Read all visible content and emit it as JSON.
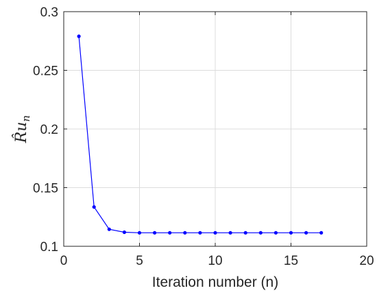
{
  "chart_data": {
    "type": "line",
    "title": "",
    "xlabel": "Iteration number (n)",
    "ylabel": "R̂u",
    "ylabel_subscript": "n",
    "xlim": [
      0,
      20
    ],
    "ylim": [
      0.1,
      0.3
    ],
    "xticks": [
      0,
      5,
      10,
      15,
      20
    ],
    "yticks": [
      0.1,
      0.15,
      0.2,
      0.25,
      0.3
    ],
    "xtick_labels": [
      "0",
      "5",
      "10",
      "15",
      "20"
    ],
    "ytick_labels": [
      "0.1",
      "0.15",
      "0.2",
      "0.25",
      "0.3"
    ],
    "grid": true,
    "series": [
      {
        "color": "#0000ff",
        "marker": "circle",
        "x": [
          1,
          2,
          3,
          4,
          5,
          6,
          7,
          8,
          9,
          10,
          11,
          12,
          13,
          14,
          15,
          16,
          17
        ],
        "y": [
          0.279,
          0.1335,
          0.1145,
          0.112,
          0.1115,
          0.1115,
          0.1115,
          0.1115,
          0.1115,
          0.1115,
          0.1115,
          0.1115,
          0.1115,
          0.1115,
          0.1115,
          0.1115,
          0.1115
        ]
      }
    ]
  }
}
